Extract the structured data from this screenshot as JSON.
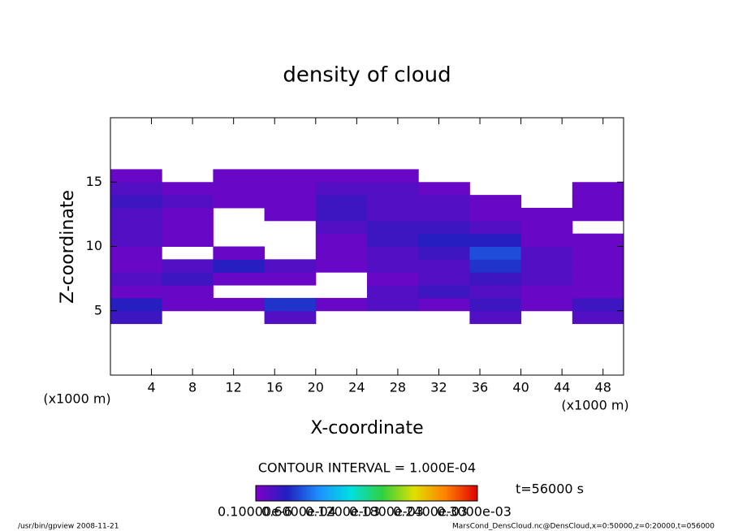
{
  "chart_data": {
    "type": "contour",
    "title": "density of cloud",
    "x_label": "X-coordinate",
    "y_label": "Z-coordinate",
    "x_unit_left": "(x1000 m)",
    "x_unit_right": "(x1000 m)",
    "contour_interval": "CONTOUR INTERVAL = 1.000E-04",
    "time_label": "t=56000 s",
    "footer_left": "/usr/bin/gpview   2008-11-21",
    "footer_right": "MarsCond_DensCloud.nc@DensCloud,x=0:50000,z=0:20000,t=056000",
    "xlim": [
      0,
      50
    ],
    "ylim": [
      0,
      20
    ],
    "xticks": [
      4,
      8,
      12,
      16,
      20,
      24,
      28,
      32,
      36,
      40,
      44,
      48
    ],
    "yticks": [
      5,
      10,
      15
    ],
    "field": {
      "x_edges": [
        0,
        5,
        10,
        15,
        20,
        25,
        30,
        35,
        40,
        45,
        50
      ],
      "y_edges": [
        4,
        5,
        6,
        7,
        8,
        9,
        10,
        11,
        12,
        13,
        14,
        15,
        16
      ],
      "values": [
        [
          3e-05,
          null,
          null,
          2e-05,
          null,
          null,
          null,
          2e-05,
          null,
          2e-05
        ],
        [
          4e-05,
          1e-05,
          1e-05,
          5e-05,
          1e-05,
          2e-05,
          1e-05,
          3e-05,
          1e-05,
          3e-05
        ],
        [
          1e-05,
          1e-05,
          null,
          null,
          null,
          2e-05,
          3e-05,
          2e-05,
          1e-05,
          1e-05
        ],
        [
          2e-05,
          3e-05,
          1e-05,
          1e-05,
          null,
          1e-05,
          2e-05,
          3e-05,
          2e-05,
          1e-05
        ],
        [
          1e-05,
          2e-05,
          4e-05,
          2e-05,
          1e-05,
          2e-05,
          2e-05,
          5e-05,
          2e-05,
          1e-05
        ],
        [
          1e-05,
          null,
          1e-05,
          null,
          1e-05,
          2e-05,
          3e-05,
          6e-05,
          2e-05,
          1e-05
        ],
        [
          2e-05,
          1e-05,
          null,
          null,
          1e-05,
          3e-05,
          4e-05,
          4e-05,
          1e-05,
          1e-05
        ],
        [
          2e-05,
          1e-05,
          null,
          null,
          2e-05,
          3e-05,
          3e-05,
          2e-05,
          1e-05,
          null
        ],
        [
          2e-05,
          1e-05,
          null,
          1e-05,
          3e-05,
          2e-05,
          2e-05,
          1e-05,
          1e-05,
          1e-05
        ],
        [
          3e-05,
          2e-05,
          1e-05,
          1e-05,
          3e-05,
          2e-05,
          2e-05,
          1e-05,
          null,
          1e-05
        ],
        [
          2e-05,
          1e-05,
          1e-05,
          1e-05,
          2e-05,
          2e-05,
          1e-05,
          null,
          null,
          1e-05
        ],
        [
          1e-05,
          null,
          1e-05,
          1e-05,
          1e-05,
          1e-05,
          null,
          null,
          null,
          null
        ]
      ]
    },
    "clim": [
      0,
      0.0003
    ],
    "colormap": [
      "#7f00c8",
      "#2020c0",
      "#1e90ff",
      "#00e0e0",
      "#30d040",
      "#e0e000",
      "#ff8000",
      "#e00000"
    ],
    "colorbar_labels": [
      "0.10000e-6",
      "0.6000e-04",
      "0.1200e-03",
      "0.1800e-03",
      "0.2400e-03",
      "0.3000e-03"
    ]
  }
}
